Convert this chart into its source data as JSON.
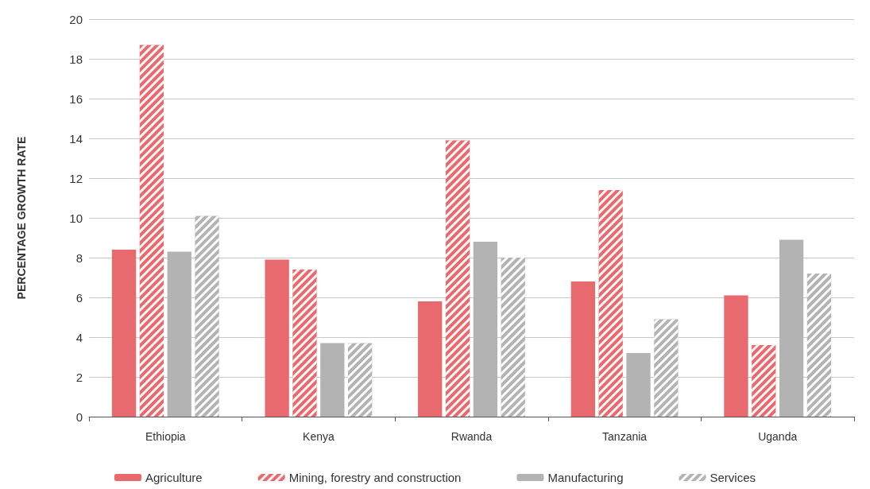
{
  "chart_data": {
    "type": "bar",
    "ylabel": "PERCENTAGE GROWTH RATE",
    "categories": [
      "Ethiopia",
      "Kenya",
      "Rwanda",
      "Tanzania",
      "Uganda"
    ],
    "series": [
      {
        "name": "Agriculture",
        "color": "#e8696e",
        "values": [
          8.4,
          7.9,
          5.8,
          6.8,
          6.1
        ]
      },
      {
        "name": "Mining, forestry and construction",
        "color": "#e8696e",
        "values": [
          18.7,
          7.4,
          13.9,
          11.4,
          3.6
        ]
      },
      {
        "name": "Manufacturing",
        "color": "#b3b3b3",
        "values": [
          8.3,
          3.7,
          8.8,
          3.2,
          8.9
        ]
      },
      {
        "name": "Services",
        "color": "#b3b3b3",
        "values": [
          10.1,
          3.7,
          8.0,
          4.9,
          7.2
        ]
      }
    ],
    "ylim": [
      0,
      20
    ],
    "yticks": [
      0,
      2,
      4,
      6,
      8,
      10,
      12,
      14,
      16,
      18,
      20
    ],
    "grid": "y",
    "legend": "bottom"
  }
}
